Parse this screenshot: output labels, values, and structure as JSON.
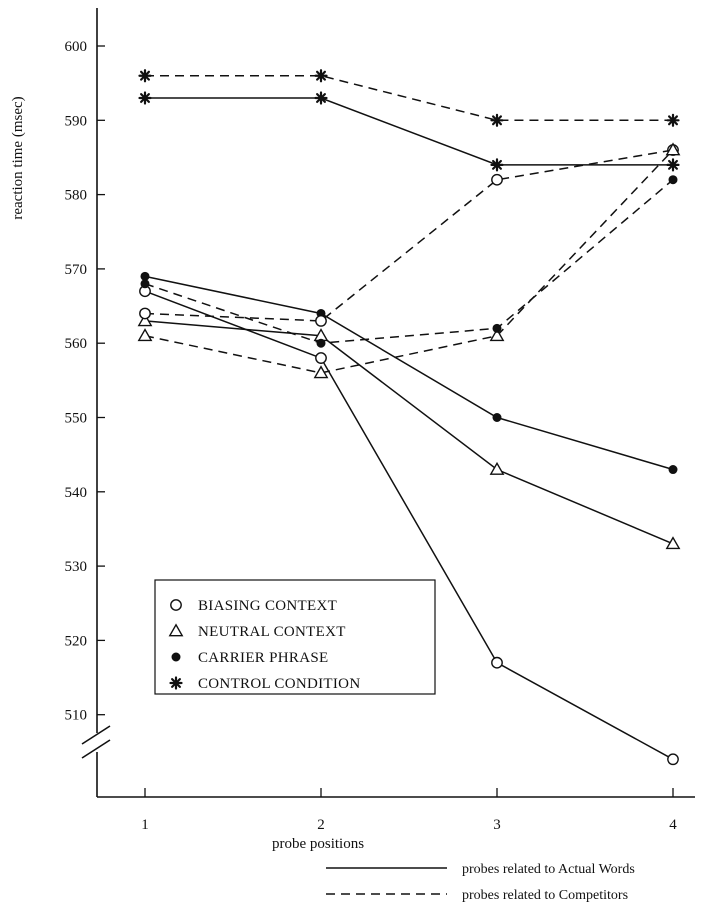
{
  "chart_data": {
    "type": "line",
    "xlabel": "probe positions",
    "ylabel": "reaction time (msec)",
    "x": [
      1,
      2,
      3,
      4
    ],
    "x_tick_labels": [
      "1",
      "2",
      "3",
      "4"
    ],
    "ylim": [
      500,
      605
    ],
    "y_axis_break": true,
    "y_ticks": [
      510,
      520,
      530,
      540,
      550,
      560,
      570,
      580,
      590,
      600
    ],
    "y_tick_labels": [
      "510",
      "520",
      "530",
      "540",
      "550",
      "560",
      "570",
      "580",
      "590",
      "600"
    ],
    "grid": false,
    "legend_conditions": {
      "placement": "lower-left",
      "entries": [
        {
          "key": "biasing",
          "label": "BIASING CONTEXT",
          "marker": "open-circle"
        },
        {
          "key": "neutral",
          "label": "NEUTRAL CONTEXT",
          "marker": "open-triangle"
        },
        {
          "key": "carrier",
          "label": "CARRIER PHRASE",
          "marker": "filled-circle"
        },
        {
          "key": "control",
          "label": "CONTROL CONDITION",
          "marker": "asterisk"
        }
      ]
    },
    "legend_line_styles": {
      "placement": "bottom-right",
      "entries": [
        {
          "style": "solid",
          "label": "probes related to Actual Words"
        },
        {
          "style": "dashed",
          "label": "probes related to Competitors"
        }
      ]
    },
    "series": [
      {
        "condition": "biasing",
        "style": "solid",
        "values": [
          567,
          558,
          517,
          504
        ]
      },
      {
        "condition": "neutral",
        "style": "solid",
        "values": [
          563,
          561,
          543,
          533
        ]
      },
      {
        "condition": "carrier",
        "style": "solid",
        "values": [
          569,
          564,
          550,
          543
        ]
      },
      {
        "condition": "control",
        "style": "solid",
        "values": [
          593,
          593,
          584,
          584
        ]
      },
      {
        "condition": "biasing",
        "style": "dashed",
        "values": [
          564,
          563,
          582,
          586
        ]
      },
      {
        "condition": "neutral",
        "style": "dashed",
        "values": [
          561,
          556,
          561,
          586
        ]
      },
      {
        "condition": "carrier",
        "style": "dashed",
        "values": [
          568,
          560,
          562,
          582
        ]
      },
      {
        "condition": "control",
        "style": "dashed",
        "values": [
          596,
          596,
          590,
          590
        ]
      }
    ]
  }
}
